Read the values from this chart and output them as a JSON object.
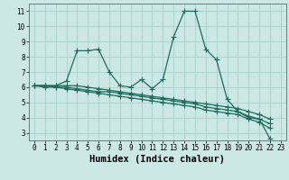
{
  "xlabel": "Humidex (Indice chaleur)",
  "xlim": [
    -0.5,
    23.5
  ],
  "ylim": [
    2.5,
    11.5
  ],
  "yticks": [
    3,
    4,
    5,
    6,
    7,
    8,
    9,
    10,
    11
  ],
  "xticks": [
    0,
    1,
    2,
    3,
    4,
    5,
    6,
    7,
    8,
    9,
    10,
    11,
    12,
    13,
    14,
    15,
    16,
    17,
    18,
    19,
    20,
    21,
    22,
    23
  ],
  "background_color": "#cce8e4",
  "grid_color": "#aacfcb",
  "line_color": "#1e6b5e",
  "series": [
    [
      6.1,
      6.1,
      6.1,
      6.4,
      8.4,
      8.4,
      8.5,
      7.0,
      6.1,
      6.0,
      6.5,
      5.9,
      6.5,
      9.3,
      11.0,
      11.0,
      8.5,
      7.8,
      5.2,
      4.4,
      4.0,
      3.9,
      2.6,
      null
    ],
    [
      6.1,
      6.1,
      6.1,
      6.1,
      6.1,
      6.0,
      5.9,
      5.8,
      5.7,
      5.6,
      5.5,
      5.4,
      5.3,
      5.2,
      5.1,
      5.0,
      4.9,
      4.8,
      4.7,
      4.6,
      4.4,
      4.2,
      3.9,
      null
    ],
    [
      6.1,
      6.1,
      6.0,
      6.0,
      5.9,
      5.8,
      5.7,
      5.7,
      5.6,
      5.5,
      5.4,
      5.3,
      5.2,
      5.1,
      5.0,
      4.9,
      4.7,
      4.6,
      4.5,
      4.4,
      4.1,
      3.9,
      3.6,
      null
    ],
    [
      6.1,
      6.0,
      6.0,
      5.9,
      5.8,
      5.7,
      5.6,
      5.5,
      5.4,
      5.3,
      5.2,
      5.1,
      5.0,
      4.9,
      4.8,
      4.7,
      4.5,
      4.4,
      4.3,
      4.2,
      3.9,
      3.7,
      3.3,
      null
    ]
  ],
  "marker": "+",
  "marker_size": 5,
  "linewidth": 0.9,
  "figsize": [
    3.2,
    2.0
  ],
  "dpi": 100,
  "tick_fontsize": 5.5,
  "xlabel_fontsize": 7.5
}
